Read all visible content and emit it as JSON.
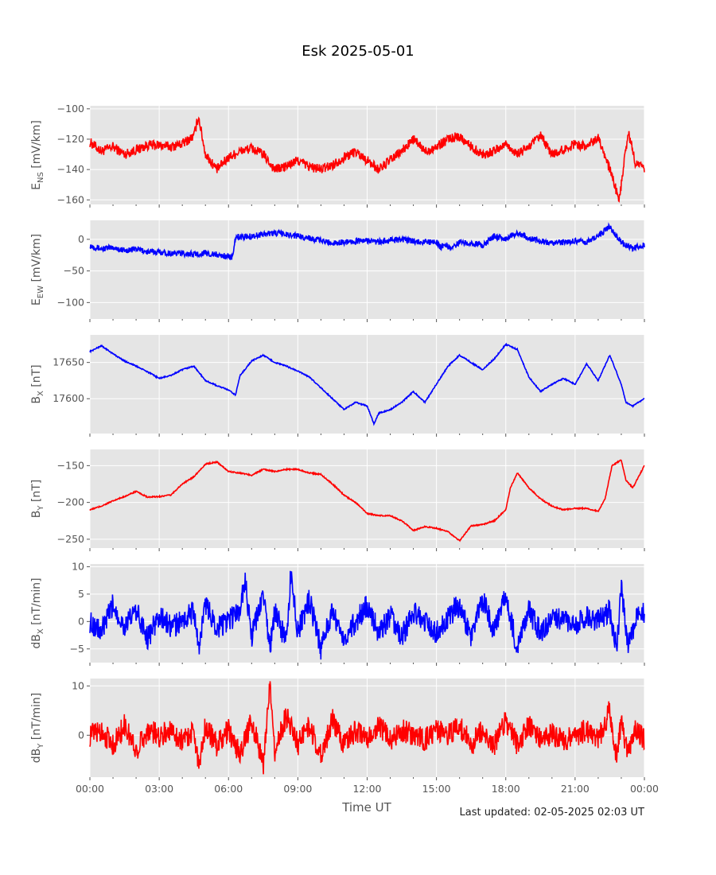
{
  "title": "Esk 2025-05-01",
  "xlabel": "Time UT",
  "footer": "Last updated: 02-05-2025 02:03 UT",
  "colors": {
    "panel_bg": "#e5e5e5",
    "grid": "#ffffff",
    "red": "#ff0000",
    "blue": "#0000ff",
    "text": "#555555"
  },
  "chart_data": [
    {
      "type": "line",
      "ylabel_main": "E",
      "ylabel_sub": "NS",
      "ylabel_unit": " [mV/km]",
      "color": "red",
      "ylim": [
        -163,
        -98
      ],
      "yticks": [
        -100,
        -120,
        -140,
        -160
      ],
      "x_hours": [
        0,
        0.5,
        1,
        1.5,
        2,
        2.5,
        3,
        3.5,
        4,
        4.5,
        4.7,
        5,
        5.5,
        6,
        6.5,
        7,
        7.5,
        8,
        8.5,
        9,
        9.5,
        10,
        10.5,
        11,
        11.5,
        12,
        12.5,
        13,
        13.5,
        14,
        14.5,
        15,
        15.5,
        16,
        16.5,
        17,
        17.5,
        18,
        18.5,
        19,
        19.5,
        20,
        20.5,
        21,
        21.5,
        22,
        22.5,
        22.9,
        23,
        23.3,
        23.6,
        24
      ],
      "values": [
        -122,
        -128,
        -125,
        -130,
        -127,
        -124,
        -124,
        -125,
        -123,
        -118,
        -105,
        -130,
        -140,
        -132,
        -128,
        -126,
        -130,
        -140,
        -138,
        -134,
        -138,
        -140,
        -137,
        -132,
        -128,
        -134,
        -140,
        -134,
        -128,
        -120,
        -128,
        -125,
        -120,
        -118,
        -125,
        -130,
        -128,
        -123,
        -130,
        -125,
        -118,
        -130,
        -127,
        -123,
        -125,
        -118,
        -140,
        -160,
        -150,
        -115,
        -135,
        -140
      ]
    },
    {
      "type": "line",
      "ylabel_main": "E",
      "ylabel_sub": "EW",
      "ylabel_unit": " [mV/km]",
      "color": "blue",
      "ylim": [
        -126,
        30
      ],
      "yticks": [
        0,
        -50,
        -100
      ],
      "x_hours": [
        0,
        0.5,
        1,
        1.5,
        2,
        2.5,
        3,
        3.5,
        4,
        4.5,
        5,
        5.5,
        6,
        6.2,
        6.3,
        7,
        7.5,
        8,
        8.5,
        9,
        9.5,
        10,
        10.5,
        11,
        11.5,
        12,
        12.5,
        13,
        13.5,
        14,
        14.5,
        15,
        15.2,
        15.4,
        15.6,
        16,
        16.5,
        17,
        17.5,
        18,
        18.5,
        19,
        19.5,
        20,
        20.5,
        21,
        21.5,
        22,
        22.5,
        23,
        23.5,
        24
      ],
      "values": [
        -10,
        -15,
        -13,
        -18,
        -15,
        -20,
        -20,
        -22,
        -22,
        -24,
        -22,
        -25,
        -27,
        -28,
        3,
        5,
        8,
        10,
        8,
        5,
        2,
        -2,
        -6,
        -4,
        -3,
        -2,
        -4,
        -2,
        0,
        -3,
        -4,
        -5,
        -12,
        -8,
        -15,
        -5,
        -5,
        -10,
        5,
        0,
        10,
        2,
        -3,
        -6,
        -5,
        -2,
        -5,
        5,
        20,
        -5,
        -15,
        -8
      ]
    },
    {
      "type": "line",
      "ylabel_main": "B",
      "ylabel_sub": "X",
      "ylabel_unit": " [nT]",
      "color": "blue",
      "ylim": [
        17552,
        17688
      ],
      "yticks": [
        17650,
        17600
      ],
      "x_hours": [
        0,
        0.5,
        1,
        1.5,
        2,
        2.5,
        3,
        3.5,
        4,
        4.5,
        5,
        5.5,
        6,
        6.3,
        6.5,
        7,
        7.5,
        8,
        8.5,
        9,
        9.5,
        10,
        10.5,
        11,
        11.5,
        12,
        12.3,
        12.5,
        13,
        13.5,
        14,
        14.5,
        15,
        15.5,
        16,
        16.5,
        17,
        17.5,
        18,
        18.5,
        19,
        19.5,
        20,
        20.5,
        21,
        21.5,
        22,
        22.5,
        23,
        23.2,
        23.5,
        24
      ],
      "values": [
        17665,
        17673,
        17662,
        17652,
        17645,
        17637,
        17628,
        17632,
        17640,
        17645,
        17625,
        17618,
        17612,
        17605,
        17632,
        17652,
        17660,
        17650,
        17645,
        17638,
        17630,
        17615,
        17600,
        17585,
        17595,
        17590,
        17565,
        17580,
        17585,
        17595,
        17610,
        17595,
        17620,
        17645,
        17660,
        17650,
        17640,
        17655,
        17675,
        17668,
        17630,
        17610,
        17620,
        17628,
        17620,
        17648,
        17625,
        17660,
        17620,
        17595,
        17590,
        17600
      ]
    },
    {
      "type": "line",
      "ylabel_main": "B",
      "ylabel_sub": "Y",
      "ylabel_unit": " [nT]",
      "color": "red",
      "ylim": [
        -262,
        -128
      ],
      "yticks": [
        -150,
        -200,
        -250
      ],
      "x_hours": [
        0,
        0.5,
        1,
        1.5,
        2,
        2.5,
        3,
        3.5,
        4,
        4.5,
        5,
        5.5,
        6,
        6.5,
        7,
        7.5,
        8,
        8.5,
        9,
        9.5,
        10,
        10.5,
        11,
        11.5,
        12,
        12.5,
        13,
        13.5,
        14,
        14.5,
        15,
        15.5,
        16,
        16.5,
        17,
        17.5,
        18,
        18.2,
        18.5,
        19,
        19.5,
        20,
        20.5,
        21,
        21.5,
        22,
        22.3,
        22.6,
        23,
        23.2,
        23.5,
        24
      ],
      "values": [
        -210,
        -205,
        -198,
        -192,
        -185,
        -193,
        -192,
        -190,
        -175,
        -165,
        -148,
        -145,
        -158,
        -160,
        -163,
        -155,
        -158,
        -155,
        -155,
        -160,
        -162,
        -175,
        -190,
        -200,
        -215,
        -218,
        -218,
        -225,
        -238,
        -233,
        -235,
        -240,
        -252,
        -232,
        -230,
        -225,
        -210,
        -180,
        -160,
        -180,
        -195,
        -205,
        -210,
        -208,
        -208,
        -212,
        -195,
        -150,
        -142,
        -170,
        -180,
        -150
      ]
    },
    {
      "type": "line",
      "ylabel_main": "dB",
      "ylabel_sub": "X",
      "ylabel_unit": " [nT/min]",
      "color": "blue",
      "ylim": [
        -7.5,
        10.5
      ],
      "yticks": [
        10,
        5,
        0,
        -5
      ],
      "x_hours": [
        0,
        0.5,
        1,
        1.5,
        2,
        2.5,
        3,
        3.5,
        4,
        4.5,
        4.7,
        5,
        5.5,
        6,
        6.5,
        6.7,
        7,
        7.5,
        7.8,
        8,
        8.5,
        8.7,
        9,
        9.5,
        10,
        10.5,
        11,
        11.5,
        12,
        12.5,
        13,
        13.5,
        14,
        14.5,
        15,
        15.5,
        16,
        16.5,
        17,
        17.5,
        18,
        18.5,
        19,
        19.5,
        20,
        20.5,
        21,
        21.5,
        22,
        22.5,
        22.8,
        23,
        23.3,
        23.6,
        24
      ],
      "values": [
        0,
        -2,
        3,
        -1,
        2,
        -3,
        1,
        -1,
        0,
        2,
        -5,
        3,
        -1,
        0,
        2,
        8,
        -3,
        5,
        -5,
        2,
        -4,
        9,
        -2,
        4,
        -5,
        2,
        -3,
        0,
        3,
        -2,
        1,
        -3,
        2,
        0,
        -2,
        1,
        3,
        -3,
        4,
        -2,
        5,
        -5,
        2,
        -2,
        1,
        0,
        -1,
        1,
        0,
        2,
        -5,
        6,
        -4,
        0,
        2
      ]
    },
    {
      "type": "line",
      "ylabel_main": "dB",
      "ylabel_sub": "Y",
      "ylabel_unit": " [nT/min]",
      "color": "red",
      "ylim": [
        -8.5,
        11.5
      ],
      "yticks": [
        10,
        0
      ],
      "x_hours": [
        0,
        0.5,
        1,
        1.5,
        2,
        2.5,
        3,
        3.5,
        4,
        4.5,
        4.7,
        5,
        5.5,
        6,
        6.5,
        7,
        7.5,
        7.8,
        8,
        8.5,
        9,
        9.5,
        10,
        10.5,
        11,
        11.5,
        12,
        12.5,
        13,
        13.5,
        14,
        14.5,
        15,
        15.5,
        16,
        16.5,
        17,
        17.5,
        18,
        18.5,
        19,
        19.5,
        20,
        20.5,
        21,
        21.5,
        22,
        22.5,
        22.8,
        23,
        23.3,
        23.6,
        24
      ],
      "values": [
        0,
        1,
        -2,
        2,
        -3,
        1,
        0,
        1,
        -1,
        1,
        -6,
        2,
        -2,
        1,
        -4,
        3,
        -6,
        10,
        -3,
        4,
        -2,
        2,
        -4,
        3,
        -2,
        1,
        -1,
        2,
        -1,
        1,
        0,
        -1,
        1,
        0,
        2,
        -2,
        1,
        -2,
        3,
        -2,
        2,
        -1,
        0,
        -1,
        0,
        1,
        -1,
        5,
        -5,
        3,
        -4,
        2,
        -1
      ]
    }
  ],
  "xticks": [
    "00:00",
    "03:00",
    "06:00",
    "09:00",
    "12:00",
    "15:00",
    "18:00",
    "21:00",
    "00:00"
  ]
}
